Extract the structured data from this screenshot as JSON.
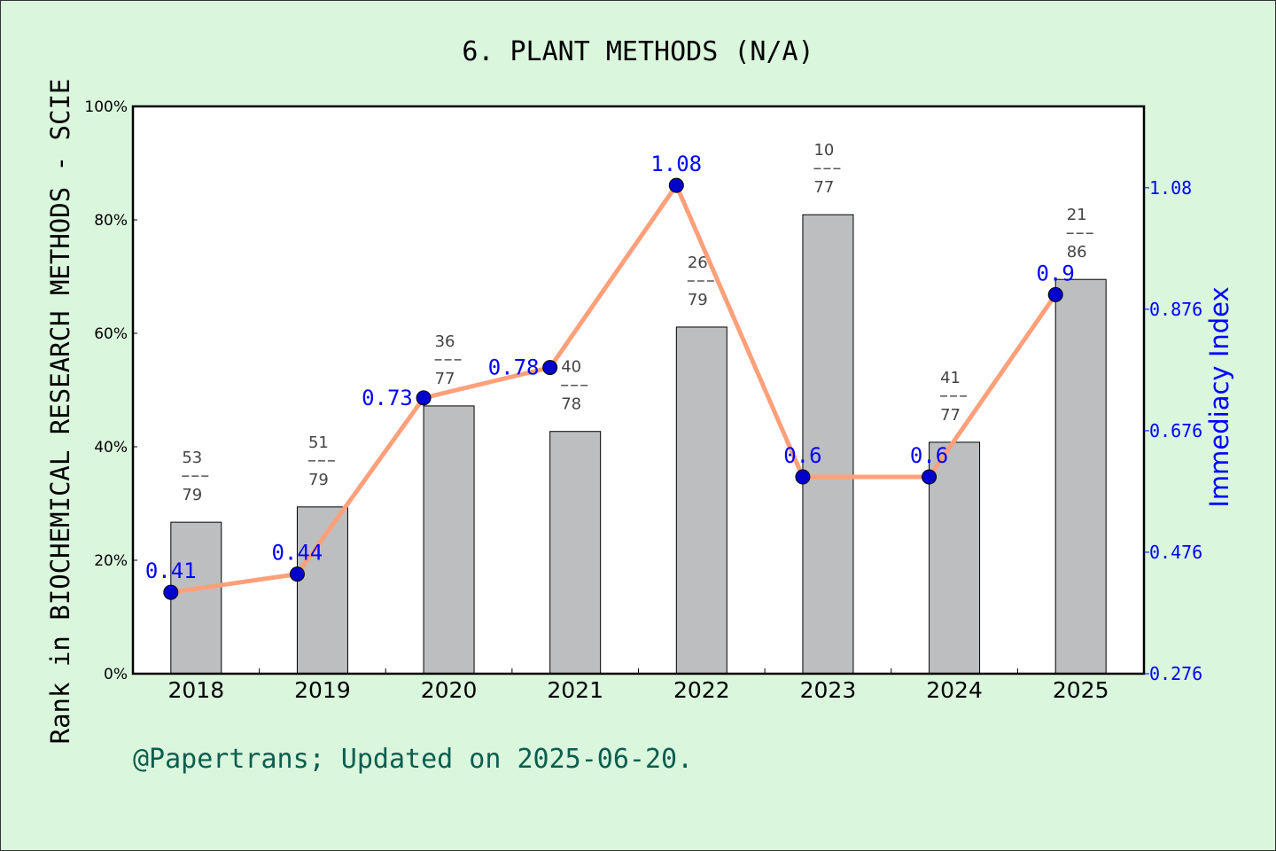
{
  "chart_data": {
    "type": "bar+line",
    "title": "6. PLANT METHODS (N/A)",
    "ylabel_left": "Rank in BIOCHEMICAL RESEARCH METHODS - SCIE",
    "ylabel_right": "Immediacy Index",
    "categories": [
      "2018",
      "2019",
      "2020",
      "2021",
      "2022",
      "2023",
      "2024",
      "2025"
    ],
    "left_axis": {
      "ylim": [
        0,
        100
      ],
      "ticks": [
        "0%",
        "20%",
        "40%",
        "60%",
        "80%",
        "100%"
      ]
    },
    "right_axis": {
      "ylim": [
        0.276,
        1.21
      ],
      "ticks": [
        "0.276",
        "0.476",
        "0.676",
        "0.876",
        "1.08"
      ]
    },
    "bars": {
      "values": [
        26.7,
        29.4,
        47.2,
        42.7,
        61.1,
        80.9,
        40.8,
        69.5
      ],
      "color": "#b8b9bb"
    },
    "bar_labels": [
      {
        "rank": "53",
        "total": "79"
      },
      {
        "rank": "51",
        "total": "79"
      },
      {
        "rank": "36",
        "total": "77"
      },
      {
        "rank": "40",
        "total": "78"
      },
      {
        "rank": "26",
        "total": "79"
      },
      {
        "rank": "10",
        "total": "77"
      },
      {
        "rank": "41",
        "total": "77"
      },
      {
        "rank": "21",
        "total": "86"
      }
    ],
    "line": {
      "values": [
        0.41,
        0.44,
        0.73,
        0.78,
        1.08,
        0.6,
        0.6,
        0.9
      ],
      "labels": [
        "0.41",
        "0.44",
        "0.73",
        "0.78",
        "1.08",
        "0.6",
        "0.6",
        "0.9"
      ],
      "color": "#ffa07a",
      "marker_color": "#0000cd"
    },
    "grid": false
  },
  "footer": "@Papertrans; Updated on 2025-06-20.",
  "colors": {
    "background": "#daf6dd",
    "right_axis": "#0000ff",
    "footer": "#0b5e4e"
  }
}
